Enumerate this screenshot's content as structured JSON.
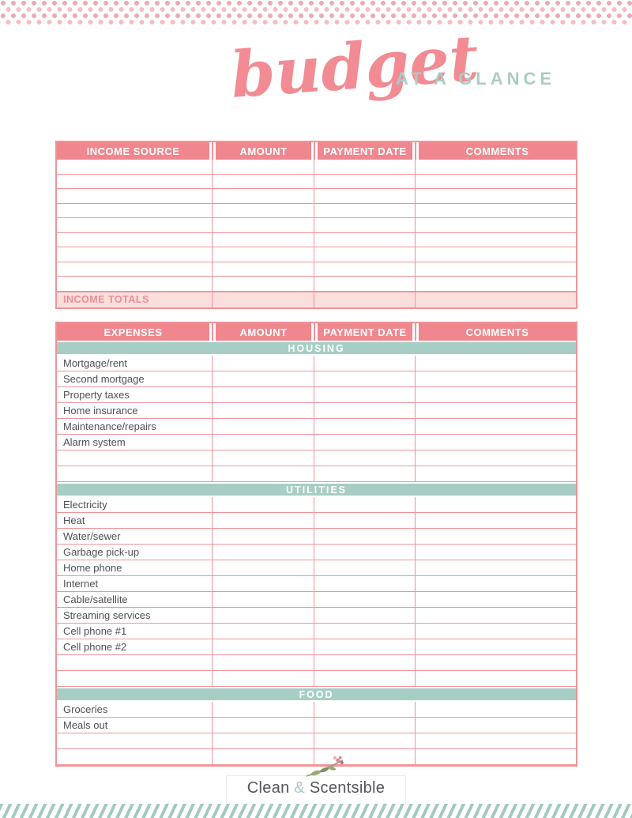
{
  "page": {
    "title_script": "budget",
    "title_suffix": "AT A GLANCE"
  },
  "colors": {
    "pink_header": "#f0868e",
    "pink_border": "#f0949a",
    "pink_light": "#fbdfdc",
    "pink_text": "#ee8c94",
    "teal": "#a6cec5",
    "title_pink": "#f28b93",
    "title_teal": "#a9cdc4",
    "label_gray": "#4f5054",
    "dot_dark": "#edabb1",
    "dot_light": "#f3bfc1",
    "stripe_teal": "#a3c9c0",
    "logo_gray": "#54555a",
    "logo_amp": "#aac4ce"
  },
  "income_table": {
    "headers": [
      "INCOME SOURCE",
      "AMOUNT",
      "PAYMENT DATE",
      "COMMENTS"
    ],
    "empty_rows": 9,
    "totals_label": "INCOME TOTALS"
  },
  "expense_table": {
    "headers": [
      "EXPENSES",
      "AMOUNT",
      "PAYMENT DATE",
      "COMMENTS"
    ],
    "sections": [
      {
        "title": "HOUSING",
        "rows": [
          "Mortgage/rent",
          "Second mortgage",
          "Property taxes",
          "Home insurance",
          "Maintenance/repairs",
          "Alarm system",
          "",
          ""
        ]
      },
      {
        "title": "UTILITIES",
        "rows": [
          "Electricity",
          "Heat",
          "Water/sewer",
          "Garbage pick-up",
          "Home phone",
          "Internet",
          "Cable/satellite",
          "Streaming services",
          "Cell phone #1",
          "Cell phone #2",
          "",
          ""
        ]
      },
      {
        "title": "FOOD",
        "rows": [
          "Groceries",
          "Meals out",
          "",
          ""
        ]
      }
    ]
  },
  "footer": {
    "logo_part1": "Clean",
    "logo_amp": "&",
    "logo_part2": "Scentsible"
  }
}
